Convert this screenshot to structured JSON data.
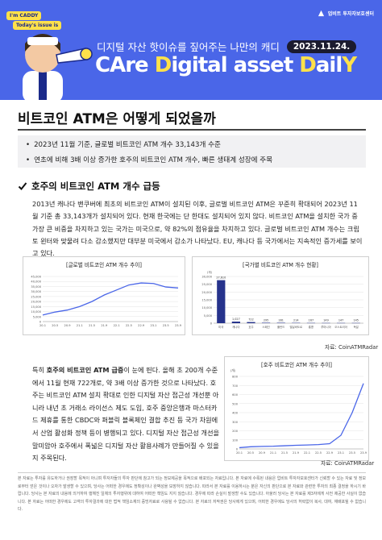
{
  "header": {
    "badge_top": "I'm CADDY",
    "badge_bottom": "Today's issue is",
    "logo_text": "업비트 투자자보호센터",
    "tagline": "디지털 자산 핫이슈를 짚어주는 나만의 캐디",
    "date": "2023.11.24.",
    "brand_part1": "CAre ",
    "brand_part2": "D",
    "brand_part3": "igital asset ",
    "brand_part4": "D",
    "brand_part5": "ail",
    "brand_part6": "Y",
    "accent_color": "#4a66e8",
    "highlight_color": "#ffe14a"
  },
  "article": {
    "title": "비트코인 ATM은 어떻게 되었을까",
    "summary": [
      "2023년 11월 기준, 글로벌 비트코인 ATM 개수 33,143개 수준",
      "연초에 비해 3배 이상 증가한 호주의 비트코인 ATM 개수, 빠른 생태계 성장에 주목"
    ],
    "section_heading": "호주의 비트코인 ATM 개수 급등",
    "para1": "2013년 캐나다 밴쿠버에 최초의 비트코인 ATM이 설치된 이후, 글로벌 비트코인 ATM은 꾸준히 확대되어 2023년 11월 기준 총 33,143개가 설치되어 있다. 현재 한국에는 단 한대도 설치되어 있지 않다. 비트코인 ATM을 설치한 국가 중 가장 큰 비중을 차지하고 있는 국가는 미국으로, 약 82%의 점유율을 차지하고 있다. 글로벌 비트코인 ATM 개수는 크립토 윈터와 맞물려 다소 감소했지만 대부분 미국에서 감소가 나타났다. EU, 캐나다 등 국가에서는 지속적인 증가세를 보이고 있다.",
    "para2_pre": "특히 ",
    "para2_bold": "호주의 비트코인 ATM 급증",
    "para2_post": "이 눈에 띈다. 올해 초 200개 수준에서 11월 현재 722개로, 약 3배 이상 증가한 것으로 나타났다. 호주는 비트코인 ATM 설치 확대로 인한 디지털 자산 접근성 개선뿐 아니라 내년 초 거래소 라이선스 제도 도입, 호주 중앙은행과 마스터카드 제휴를 통한 CBDC와 퍼블릭 블록체인 결합 추진 등 국가 차원에서 산업 활성화 정책 등이 병행되고 있다. 디지털 자산 접근성 개선을 말미암아 호주에서 폭넓은 디지털 자산 활용사례가 만들어질 수 있을지 주목된다.",
    "source1": "자료: CoinATMRadar",
    "source2": "자료: CoinATMRadar",
    "disclaimer": "본 자료는 투자를 유도하거나 권장할 목적이 아니며 투자자들의 투자 판단에 참고가 되는 정보제공을 목적으로 배포되는 자료입니다. 본 자료에 수록된 내용은 업비트 투자자보호센터가 신뢰할 수 있는 자료 및 정보로부터 얻은 것이나 오자가 발생할 수 있으며, 당사는 어떠한 경우에도 정확성이나 완벽성을 보장하지 않습니다. 따라서 본 자료를 이용하시는 분은 자신의 판단으로 본 자료와 관련한 투자의 최종 결정을 하시기 바랍니다. 당사는 본 자료의 내용에 의거하여 행해진 일체의 투자행위에 대하여 어떠한 책임도 지지 않습니다. 경우에 따라 손실이 발생할 수도 있습니다. 아울러 당사는 본 자료를 제3자에게 사전 제공한 사실이 없습니다. 본 자료는 어떠한 경우에도 고객의 투자결과에 대한 법적 책임소재의 증빙자료로 사용될 수 없습니다. 본 자료의 저작권은 당사에게 있으며, 어떠한 경우에도 당사의 허락없이 복사, 대여, 재배포될 수 없습니다."
  },
  "chart_data": [
    {
      "type": "line",
      "title": "[글로벌 비트코인 ATM 개수 추이]",
      "x": [
        "20.1",
        "20.5",
        "20.9",
        "21.1",
        "21.5",
        "21.9",
        "22.1",
        "22.5",
        "22.9",
        "23.1",
        "23.5",
        "23.9"
      ],
      "values": [
        6500,
        9500,
        11500,
        15000,
        20000,
        26500,
        31500,
        36500,
        38500,
        38000,
        34500,
        33500
      ],
      "ylim": [
        0,
        45000
      ],
      "yticks": [
        "0",
        "5,000",
        "10,000",
        "15,000",
        "20,000",
        "25,000",
        "30,000",
        "35,000",
        "40,000",
        "45,000"
      ],
      "grid": true,
      "color": "#4a66e8"
    },
    {
      "type": "bar",
      "title": "[국가별 비트코인 ATM 개수 현황]",
      "unit": "(개)",
      "categories": [
        "미국",
        "캐나다",
        "호주",
        "스페인",
        "폴란드",
        "엘살바도르",
        "홍콩",
        "루마니아",
        "오스트리아",
        "독일"
      ],
      "values": [
        27610,
        1027,
        722,
        295,
        281,
        214,
        167,
        149,
        147,
        145
      ],
      "labels": [
        "27,610",
        "1,027",
        "722",
        "295",
        "281",
        "214",
        "167",
        "149",
        "147",
        "145"
      ],
      "ylim": [
        0,
        30000
      ],
      "yticks": [
        "0",
        "5,000",
        "10,000",
        "15,000",
        "20,000",
        "25,000",
        "30,000"
      ],
      "color": "#26338c"
    },
    {
      "type": "line",
      "title": "[호주 비트코인 ATM 개수 추이]",
      "unit": "(개)",
      "x": [
        "20.1",
        "20.5",
        "20.9",
        "21.1",
        "21.5",
        "21.9",
        "22.1",
        "22.5",
        "22.9",
        "23.1",
        "23.5",
        "23.9"
      ],
      "values": [
        14,
        24,
        28,
        30,
        35,
        40,
        43,
        48,
        58,
        150,
        400,
        722
      ],
      "ylim": [
        0,
        800
      ],
      "yticks": [
        "0",
        "100",
        "200",
        "300",
        "400",
        "500",
        "600",
        "700",
        "800"
      ],
      "grid": true,
      "color": "#4a66e8"
    }
  ]
}
